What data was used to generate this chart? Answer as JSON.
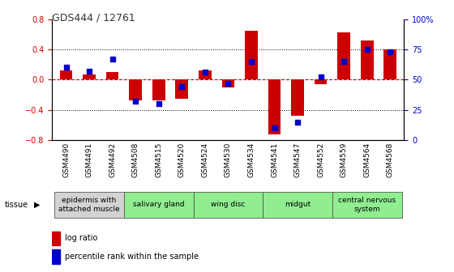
{
  "title": "GDS444 / 12761",
  "samples": [
    "GSM4490",
    "GSM4491",
    "GSM4492",
    "GSM4508",
    "GSM4515",
    "GSM4520",
    "GSM4524",
    "GSM4530",
    "GSM4534",
    "GSM4541",
    "GSM4547",
    "GSM4552",
    "GSM4559",
    "GSM4564",
    "GSM4568"
  ],
  "log_ratio": [
    0.12,
    0.07,
    0.1,
    -0.28,
    -0.27,
    -0.25,
    0.12,
    -0.1,
    0.65,
    -0.72,
    -0.48,
    -0.06,
    0.62,
    0.52,
    0.4
  ],
  "percentile": [
    60,
    57,
    67,
    32,
    30,
    44,
    56,
    47,
    65,
    10,
    15,
    52,
    65,
    75,
    73
  ],
  "tissue_groups": [
    {
      "label": "epidermis with\nattached muscle",
      "start": 0,
      "end": 3,
      "color": "#d3d3d3"
    },
    {
      "label": "salivary gland",
      "start": 3,
      "end": 6,
      "color": "#90ee90"
    },
    {
      "label": "wing disc",
      "start": 6,
      "end": 9,
      "color": "#90ee90"
    },
    {
      "label": "midgut",
      "start": 9,
      "end": 12,
      "color": "#90ee90"
    },
    {
      "label": "central nervous\nsystem",
      "start": 12,
      "end": 15,
      "color": "#90ee90"
    }
  ],
  "ylim": [
    -0.8,
    0.8
  ],
  "y2lim": [
    0,
    100
  ],
  "yticks": [
    -0.8,
    -0.4,
    0.0,
    0.4,
    0.8
  ],
  "y2ticks": [
    0,
    25,
    50,
    75,
    100
  ],
  "y2ticklabels": [
    "0",
    "25",
    "50",
    "75",
    "100%"
  ],
  "bar_color": "#cc0000",
  "dot_color": "#0000cc",
  "dot_size": 18,
  "zero_line_color": "#cc0000",
  "grid_color": "#000000",
  "bg_color": "#ffffff",
  "title_color": "#333333",
  "label_fontsize": 6.5,
  "tick_fontsize": 7,
  "tissue_fontsize": 6.5
}
